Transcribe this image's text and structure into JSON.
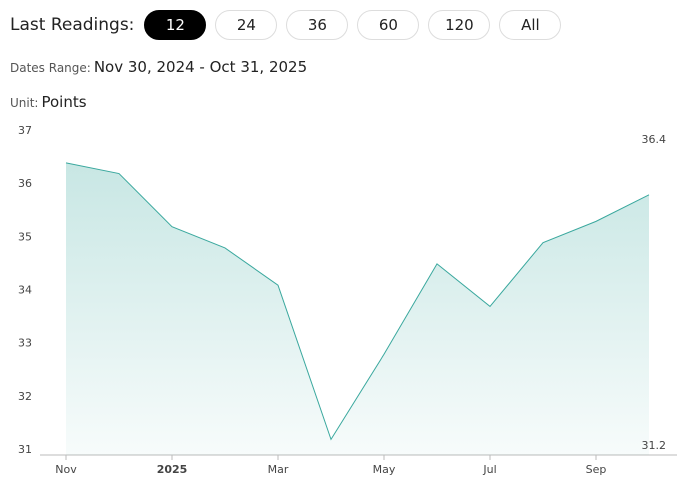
{
  "header": {
    "label": "Last Readings:",
    "buttons": [
      "12",
      "24",
      "36",
      "60",
      "120",
      "All"
    ],
    "selected": 0
  },
  "range": {
    "label": "Dates Range:",
    "value": "Nov 30, 2024 - Oct 31, 2025"
  },
  "unit": {
    "label": "Unit:",
    "value": "Points"
  },
  "chart_data": {
    "type": "area",
    "x": [
      "2024-11",
      "2024-12",
      "2025-01",
      "2025-02",
      "2025-03",
      "2025-04",
      "2025-05",
      "2025-06",
      "2025-07",
      "2025-08",
      "2025-09",
      "2025-10"
    ],
    "values": [
      36.4,
      36.2,
      35.2,
      34.8,
      34.1,
      31.2,
      32.8,
      34.5,
      33.7,
      34.9,
      35.3,
      35.8
    ],
    "color": "#3aa89e",
    "ylim": [
      31,
      37
    ],
    "yticks": [
      31,
      32,
      33,
      34,
      35,
      36,
      37
    ],
    "xticks": [
      {
        "value": "2024-11",
        "label": "Nov"
      },
      {
        "value": "2025-01",
        "label": "2025"
      },
      {
        "value": "2025-03",
        "label": "Mar"
      },
      {
        "value": "2025-05",
        "label": "May"
      },
      {
        "value": "2025-07",
        "label": "Jul"
      },
      {
        "value": "2025-09",
        "label": "Sep"
      }
    ],
    "high": 36.4,
    "low": 31.2
  }
}
